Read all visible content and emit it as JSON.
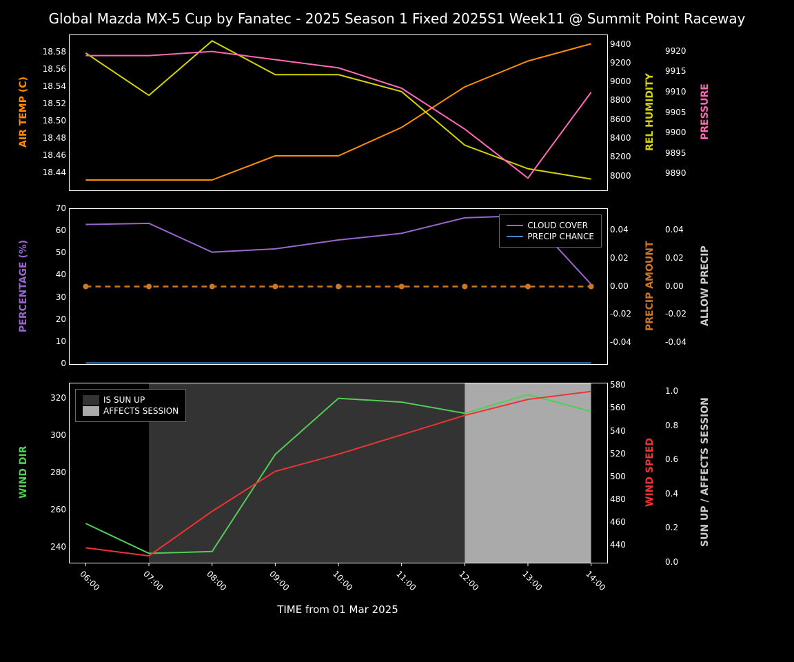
{
  "title": "Global Mazda MX-5 Cup by Fanatec - 2025 Season 1 Fixed 2025S1 Week11 @ Summit Point Raceway",
  "xlabel": "TIME from 01 Mar 2025",
  "time_labels": [
    "06:00",
    "07:00",
    "08:00",
    "09:00",
    "10:00",
    "11:00",
    "12:00",
    "13:00",
    "14:00"
  ],
  "background_color": "#000000",
  "text_color": "#ffffff",
  "chart1": {
    "left_label": "AIR TEMP (C)",
    "left_color": "#ff8c00",
    "right1_label": "REL HUMIDITY",
    "right1_color": "#d4d400",
    "right2_label": "PRESSURE",
    "right2_color": "#ff69b4",
    "temp": {
      "values": [
        18.432,
        18.432,
        18.432,
        18.46,
        18.46,
        18.493,
        18.54,
        18.57,
        18.59
      ],
      "ylim": [
        18.42,
        18.6
      ],
      "ticks": [
        18.44,
        18.46,
        18.48,
        18.5,
        18.52,
        18.54,
        18.56,
        18.58
      ],
      "color": "#ff8c00"
    },
    "humidity": {
      "values": [
        9310,
        8860,
        9440,
        9080,
        9080,
        8900,
        8330,
        8080,
        7970
      ],
      "ylim": [
        7850,
        9500
      ],
      "ticks": [
        8000,
        8200,
        8400,
        8600,
        8800,
        9000,
        9200,
        9400
      ],
      "color": "#d4d400"
    },
    "pressure": {
      "values": [
        9919,
        9919,
        9920,
        9918,
        9916,
        9911,
        9901,
        9889,
        9910
      ],
      "ylim": [
        9886,
        9924
      ],
      "ticks": [
        9890,
        9895,
        9900,
        9905,
        9910,
        9915,
        9920
      ],
      "color": "#ff69b4"
    }
  },
  "chart2": {
    "left_label": "PERCENTAGE (%)",
    "left_color": "#9966cc",
    "right1_label": "PRECIP AMOUNT",
    "right1_color": "#cc7722",
    "right2_label": "ALLOW PRECIP",
    "right2_color": "#cccccc",
    "legend": {
      "items": [
        {
          "label": "CLOUD COVER",
          "color": "#9966cc"
        },
        {
          "label": "PRECIP CHANCE",
          "color": "#4488cc"
        }
      ]
    },
    "cloud": {
      "values": [
        63,
        63.5,
        50.5,
        52,
        56,
        59,
        66,
        67,
        36
      ],
      "ylim": [
        0,
        70
      ],
      "ticks": [
        0,
        10,
        20,
        30,
        40,
        50,
        60,
        70
      ],
      "color": "#9966cc"
    },
    "precip_chance": {
      "values": [
        0.5,
        0.5,
        0.5,
        0.5,
        0.5,
        0.5,
        0.5,
        0.5,
        0.5
      ],
      "color": "#4488cc"
    },
    "precip_amount": {
      "values": [
        0,
        0,
        0,
        0,
        0,
        0,
        0,
        0,
        0
      ],
      "ylim": [
        -0.055,
        0.055
      ],
      "ticks": [
        -0.04,
        -0.02,
        0.0,
        0.02,
        0.04
      ],
      "color": "#cc7722"
    },
    "allow_precip": {
      "ylim": [
        -0.055,
        0.055
      ],
      "ticks": [
        -0.04,
        -0.02,
        0.0,
        0.02,
        0.04
      ]
    }
  },
  "chart3": {
    "left_label": "WIND DIR",
    "left_color": "#55cc55",
    "right1_label": "WIND SPEED",
    "right1_color": "#ee3333",
    "right2_label": "SUN UP / AFFECTS SESSION",
    "right2_color": "#cccccc",
    "legend": {
      "items": [
        {
          "label": "IS SUN UP",
          "color": "#333333"
        },
        {
          "label": "AFFECTS SESSION",
          "color": "#aaaaaa"
        }
      ]
    },
    "wind_dir": {
      "values": [
        253,
        237,
        238,
        290,
        320,
        318,
        312,
        322,
        313
      ],
      "ylim": [
        232,
        328
      ],
      "ticks": [
        240,
        260,
        280,
        300,
        320
      ],
      "color": "#55cc55"
    },
    "wind_speed": {
      "values": [
        438,
        431,
        470,
        505,
        520,
        537,
        554,
        568,
        575
      ],
      "ylim": [
        425,
        582
      ],
      "ticks": [
        440,
        460,
        480,
        500,
        520,
        540,
        560,
        580
      ],
      "color": "#ee3333"
    },
    "sun_session": {
      "ylim": [
        0,
        1.05
      ],
      "ticks": [
        0.0,
        0.2,
        0.4,
        0.6,
        0.8,
        1.0
      ]
    },
    "sun_up_region": {
      "start": 1,
      "end": 8,
      "color": "#333333"
    },
    "affects_region": {
      "start": 6,
      "end": 8,
      "color": "#aaaaaa"
    }
  }
}
